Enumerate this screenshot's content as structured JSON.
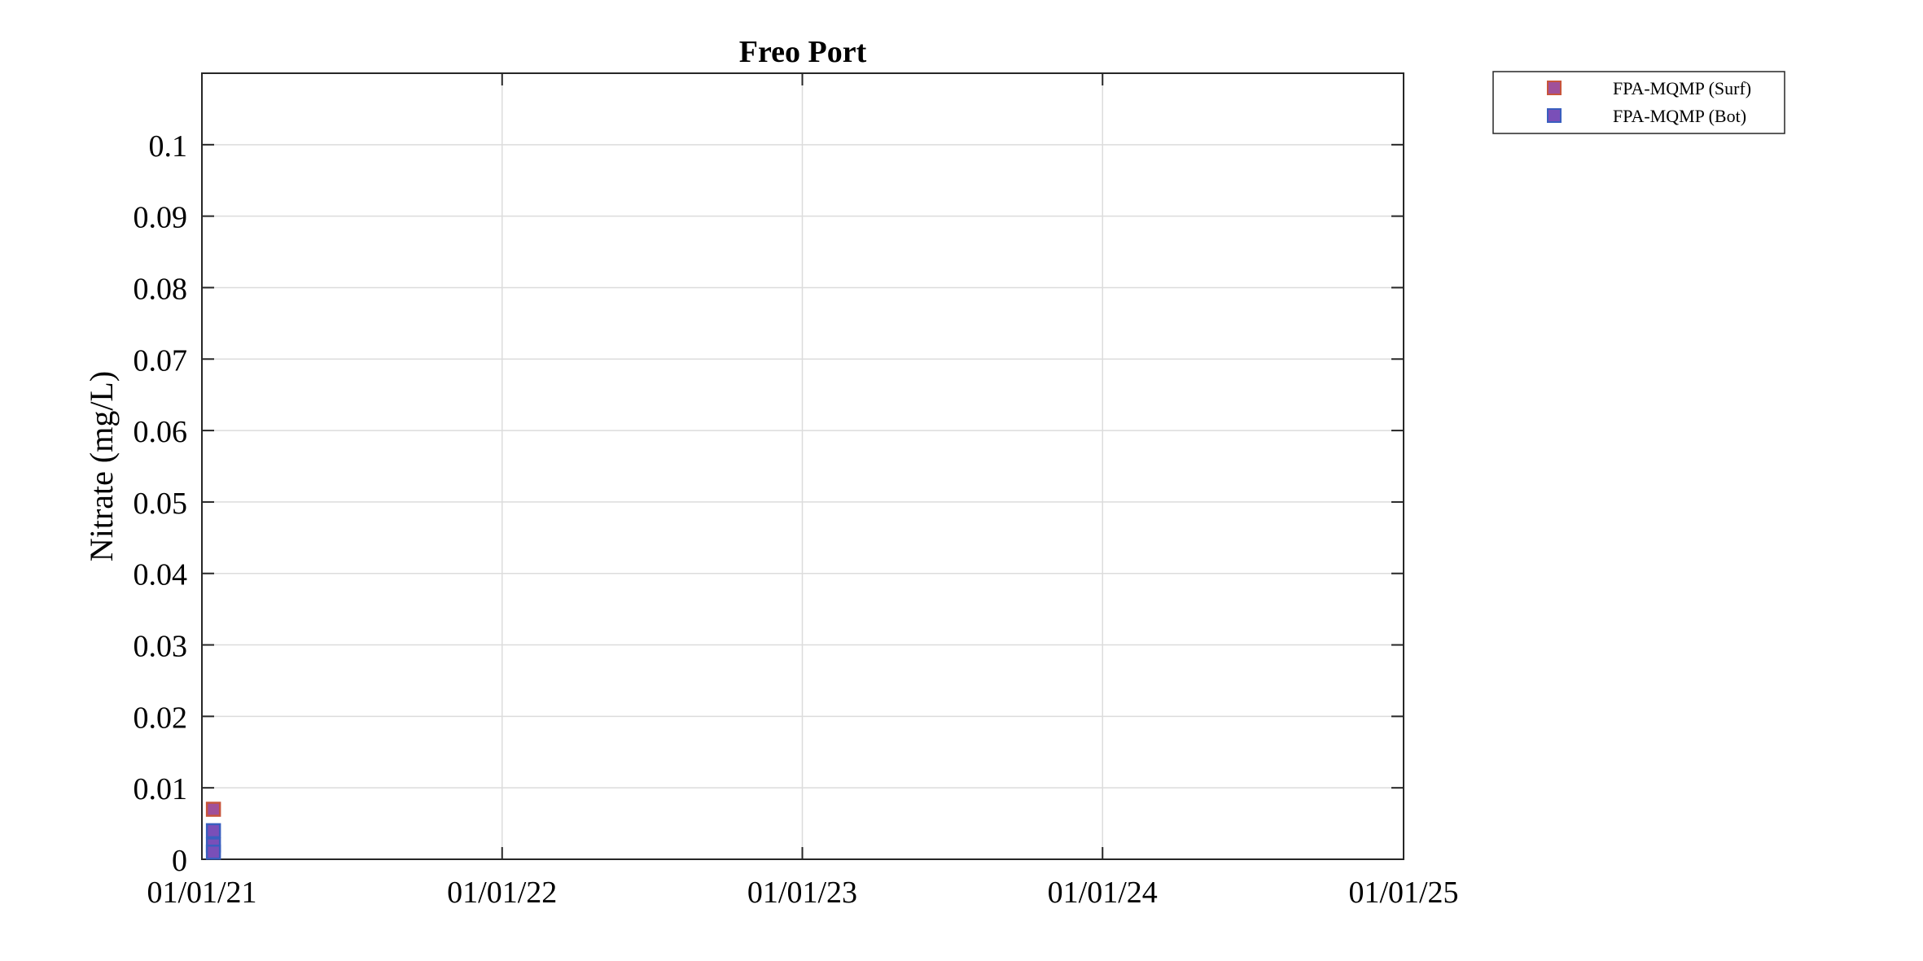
{
  "colors": {
    "surf_fill": "#a0509a",
    "surf_edge": "#c8553c",
    "bot_fill": "#7a4fb8",
    "bot_edge": "#3a5fbf",
    "grid": "#dcdcdc",
    "axis": "#262626"
  },
  "chart_data": {
    "type": "scatter",
    "title": "Freo Port",
    "xlabel": "",
    "ylabel": "Nitrate (mg/L)",
    "x_type": "date",
    "xlim": [
      "2021-01-01",
      "2025-01-01"
    ],
    "ylim": [
      0,
      0.11
    ],
    "xticks": [
      "2021-01-01",
      "2022-01-01",
      "2023-01-01",
      "2024-01-01",
      "2025-01-01"
    ],
    "xtick_labels": [
      "01/01/21",
      "01/01/22",
      "01/01/23",
      "01/01/24",
      "01/01/25"
    ],
    "yticks": [
      0,
      0.01,
      0.02,
      0.03,
      0.04,
      0.05,
      0.06,
      0.07,
      0.08,
      0.09,
      0.1
    ],
    "ytick_labels": [
      "0",
      "0.01",
      "0.02",
      "0.03",
      "0.04",
      "0.05",
      "0.06",
      "0.07",
      "0.08",
      "0.09",
      "0.1"
    ],
    "grid": true,
    "legend_position": "outside top-right",
    "series": [
      {
        "name": "FPA-MQMP (Surf)",
        "marker": "square",
        "fill": "#a0509a",
        "edge": "#c8553c",
        "points": [
          {
            "x": "2021-01-15",
            "y": 0.007
          }
        ]
      },
      {
        "name": "FPA-MQMP (Bot)",
        "marker": "square",
        "fill": "#7a4fb8",
        "edge": "#3a5fbf",
        "points": [
          {
            "x": "2021-01-15",
            "y": 0.004
          },
          {
            "x": "2021-01-15",
            "y": 0.002
          },
          {
            "x": "2021-01-15",
            "y": 0.001
          }
        ]
      }
    ]
  }
}
